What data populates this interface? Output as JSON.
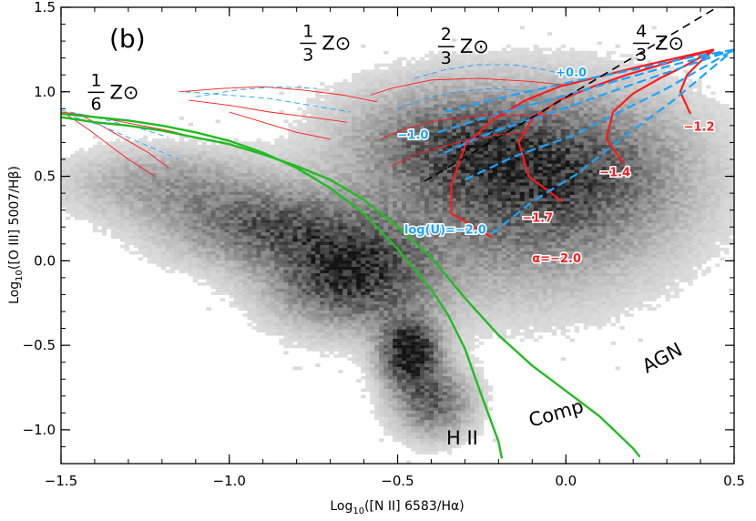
{
  "chart_data": {
    "type": "scatter",
    "panel_label": "(b)",
    "xlabel": "Log10([N II] 6583/Hα)",
    "ylabel": "Log10([O III] 5007/Hβ)",
    "xlabel_parts": {
      "pre": "Log",
      "sub": "10",
      "post": "([N II] 6583/Hα)"
    },
    "ylabel_parts": {
      "pre": "Log",
      "sub": "10",
      "post": "([O III] 5007/Hβ)"
    },
    "xlim": [
      -1.5,
      0.5
    ],
    "ylim": [
      -1.2,
      1.5
    ],
    "xticks": [
      -1.5,
      -1.0,
      -0.5,
      0.0,
      0.5
    ],
    "xtick_labels": [
      "−1.5",
      "−1.0",
      "−0.5",
      "0.0",
      "0.5"
    ],
    "yticks": [
      -1.0,
      -0.5,
      0.0,
      0.5,
      1.0,
      1.5
    ],
    "ytick_labels": [
      "−1.0",
      "−0.5",
      "0.0",
      "0.5",
      "1.0",
      "1.5"
    ],
    "region_labels": [
      "H II",
      "Comp",
      "AGN"
    ],
    "metallicity_labels": [
      {
        "num": "1",
        "den": "6",
        "sym": "Z⊙",
        "x": -1.42,
        "y": 0.97
      },
      {
        "num": "1",
        "den": "3",
        "sym": "Z⊙",
        "x": -0.79,
        "y": 1.26
      },
      {
        "num": "2",
        "den": "3",
        "sym": "Z⊙",
        "x": -0.38,
        "y": 1.24
      },
      {
        "num": "4",
        "den": "3",
        "sym": "Z⊙",
        "x": 0.2,
        "y": 1.26
      }
    ],
    "alpha_labels": [
      {
        "text": "α=−2.0",
        "x": -0.1,
        "y": -0.01
      },
      {
        "text": "−1.7",
        "x": -0.13,
        "y": 0.23
      },
      {
        "text": "−1.4",
        "x": 0.1,
        "y": 0.5
      },
      {
        "text": "−1.2",
        "x": 0.35,
        "y": 0.77
      }
    ],
    "logU_labels": [
      {
        "text": "log(U)=−2.0",
        "x": -0.48,
        "y": 0.16
      },
      {
        "text": "−1.0",
        "x": -0.5,
        "y": 0.72
      },
      {
        "text": "+0.0",
        "x": -0.03,
        "y": 1.09
      }
    ],
    "series": [
      {
        "name": "Kewley",
        "kind": "curve",
        "color": "#22bb22",
        "x": [
          -1.5,
          -1.4,
          -1.3,
          -1.2,
          -1.1,
          -1.0,
          -0.9,
          -0.8,
          -0.7,
          -0.6,
          -0.5,
          -0.4,
          -0.3,
          -0.2,
          -0.1,
          0.0,
          0.1,
          0.2,
          0.22
        ],
        "y": [
          0.85,
          0.82,
          0.8,
          0.77,
          0.73,
          0.69,
          0.63,
          0.56,
          0.48,
          0.36,
          0.2,
          0.02,
          -0.22,
          -0.44,
          -0.62,
          -0.77,
          -0.92,
          -1.11,
          -1.16
        ]
      },
      {
        "name": "Kauffmann",
        "kind": "curve",
        "color": "#22bb22",
        "x": [
          -1.5,
          -1.4,
          -1.3,
          -1.2,
          -1.1,
          -1.0,
          -0.9,
          -0.8,
          -0.7,
          -0.6,
          -0.5,
          -0.4,
          -0.35,
          -0.3,
          -0.25,
          -0.2,
          -0.19
        ],
        "y": [
          0.87,
          0.85,
          0.83,
          0.8,
          0.76,
          0.71,
          0.64,
          0.55,
          0.43,
          0.28,
          0.07,
          -0.17,
          -0.32,
          -0.52,
          -0.8,
          -1.07,
          -1.17
        ]
      },
      {
        "name": "Seyfert/LINER",
        "kind": "dashed-line",
        "color": "#000000",
        "x": [
          -0.42,
          0.5
        ],
        "y": [
          0.47,
          1.56
        ]
      },
      {
        "name": "alpha=-2.0 (Z=4/3)",
        "kind": "model-alpha",
        "color": "#ff1a1a",
        "x": [
          -0.22,
          -0.34,
          -0.34,
          -0.3,
          -0.22,
          -0.12,
          -0.02,
          0.08,
          0.22,
          0.44
        ],
        "y": [
          0.14,
          0.28,
          0.45,
          0.68,
          0.83,
          0.95,
          1.03,
          1.08,
          1.15,
          1.25
        ]
      },
      {
        "name": "alpha=-1.7 (Z=4/3)",
        "kind": "model-alpha",
        "color": "#ff1a1a",
        "x": [
          -0.01,
          -0.11,
          -0.14,
          -0.1,
          -0.02,
          0.08,
          0.18,
          0.3,
          0.44
        ],
        "y": [
          0.35,
          0.5,
          0.7,
          0.84,
          0.95,
          1.03,
          1.1,
          1.17,
          1.25
        ]
      },
      {
        "name": "alpha=-1.4 (Z=4/3)",
        "kind": "model-alpha",
        "color": "#ff1a1a",
        "x": [
          0.17,
          0.12,
          0.14,
          0.2,
          0.28,
          0.36,
          0.44
        ],
        "y": [
          0.58,
          0.72,
          0.88,
          0.99,
          1.08,
          1.16,
          1.25
        ]
      },
      {
        "name": "alpha=-1.2 (Z=4/3)",
        "kind": "model-alpha",
        "color": "#ff1a1a",
        "x": [
          0.37,
          0.34,
          0.36,
          0.4,
          0.44
        ],
        "y": [
          0.87,
          1.0,
          1.1,
          1.18,
          1.25
        ]
      },
      {
        "name": "log(U)=-2.0 (Z=4/3)",
        "kind": "model-logU",
        "color": "#1aa3ff",
        "x": [
          -0.22,
          -0.1,
          0.03,
          0.17,
          0.32,
          0.5
        ],
        "y": [
          0.16,
          0.35,
          0.51,
          0.73,
          0.95,
          1.25
        ]
      },
      {
        "name": "log(U)=-1.5 (Z=4/3)",
        "kind": "model-logU",
        "color": "#1aa3ff",
        "x": [
          -0.3,
          -0.15,
          0.02,
          0.16,
          0.3,
          0.5
        ],
        "y": [
          0.48,
          0.62,
          0.74,
          0.88,
          1.02,
          1.25
        ]
      },
      {
        "name": "log(U)=-1.0 (Z=4/3)",
        "kind": "model-logU",
        "color": "#1aa3ff",
        "x": [
          -0.36,
          -0.22,
          -0.05,
          0.12,
          0.28,
          0.5
        ],
        "y": [
          0.64,
          0.76,
          0.87,
          0.99,
          1.1,
          1.25
        ]
      },
      {
        "name": "log(U)=-0.5 (Z=4/3)",
        "kind": "model-logU",
        "color": "#1aa3ff",
        "x": [
          -0.38,
          -0.2,
          0.0,
          0.16,
          0.32,
          0.5
        ],
        "y": [
          0.76,
          0.87,
          0.98,
          1.07,
          1.16,
          1.25
        ]
      },
      {
        "name": "log(U)=+0.0 (Z=4/3)",
        "kind": "model-logU",
        "color": "#1aa3ff",
        "x": [
          -0.36,
          -0.18,
          0.02,
          0.2,
          0.36,
          0.5
        ],
        "y": [
          0.88,
          0.97,
          1.06,
          1.13,
          1.2,
          1.25
        ]
      },
      {
        "name": "alpha (Z=2/3)",
        "kind": "model-alpha-thin",
        "color": "#ff1a1a",
        "x": [
          -0.58,
          -0.52,
          -0.4,
          -0.26,
          -0.1,
          0.0
        ],
        "y": [
          0.98,
          1.02,
          1.07,
          1.08,
          1.06,
          1.04
        ]
      },
      {
        "name": "alpha (Z=2/3) b",
        "kind": "model-alpha-thin",
        "color": "#ff1a1a",
        "x": [
          -0.55,
          -0.48,
          -0.38,
          -0.25,
          -0.12,
          -0.02
        ],
        "y": [
          0.72,
          0.78,
          0.83,
          0.86,
          0.86,
          0.86
        ]
      },
      {
        "name": "alpha (Z=2/3) c",
        "kind": "model-alpha-thin",
        "color": "#ff1a1a",
        "x": [
          -0.52,
          -0.43,
          -0.32,
          -0.22,
          -0.12
        ],
        "y": [
          0.56,
          0.64,
          0.7,
          0.74,
          0.76
        ]
      },
      {
        "name": "logU (Z=2/3) a",
        "kind": "model-logU-thin",
        "color": "#1aa3ff",
        "x": [
          -0.45,
          -0.36,
          -0.26,
          -0.16,
          -0.06,
          0.02
        ],
        "y": [
          1.08,
          1.13,
          1.16,
          1.16,
          1.13,
          1.09
        ]
      },
      {
        "name": "logU (Z=2/3) b",
        "kind": "model-logU-thin",
        "color": "#1aa3ff",
        "x": [
          -0.5,
          -0.42,
          -0.32,
          -0.22,
          -0.1
        ],
        "y": [
          0.9,
          0.96,
          1.0,
          1.02,
          1.0
        ]
      },
      {
        "name": "logU (Z=2/3) c",
        "kind": "model-logU-thin",
        "color": "#1aa3ff",
        "x": [
          -0.38,
          -0.3,
          -0.2,
          -0.1
        ],
        "y": [
          0.62,
          0.7,
          0.78,
          0.86
        ]
      },
      {
        "name": "alpha (Z=1/3) a",
        "kind": "model-alpha-thin",
        "color": "#ff1a1a",
        "x": [
          -1.15,
          -1.02,
          -0.9,
          -0.78,
          -0.66,
          -0.56
        ],
        "y": [
          1.0,
          1.02,
          1.03,
          1.01,
          0.98,
          0.94
        ]
      },
      {
        "name": "alpha (Z=1/3) b",
        "kind": "model-alpha-thin",
        "color": "#ff1a1a",
        "x": [
          -1.12,
          -1.0,
          -0.88,
          -0.76,
          -0.65
        ],
        "y": [
          0.95,
          0.92,
          0.88,
          0.85,
          0.82
        ]
      },
      {
        "name": "alpha (Z=1/3) c",
        "kind": "model-alpha-thin",
        "color": "#ff1a1a",
        "x": [
          -1.0,
          -0.9,
          -0.8,
          -0.7
        ],
        "y": [
          0.88,
          0.82,
          0.76,
          0.72
        ]
      },
      {
        "name": "logU (Z=1/3) a",
        "kind": "model-logU-thin",
        "color": "#1aa3ff",
        "x": [
          -1.13,
          -1.0,
          -0.88,
          -0.76,
          -0.64
        ],
        "y": [
          1.0,
          0.98,
          0.96,
          0.92,
          0.88
        ]
      },
      {
        "name": "logU (Z=1/3) b",
        "kind": "model-logU-thin",
        "color": "#1aa3ff",
        "x": [
          -1.1,
          -0.98,
          -0.86,
          -0.74
        ],
        "y": [
          0.97,
          1.01,
          1.03,
          1.02
        ]
      },
      {
        "name": "alpha (Z=1/6) a",
        "kind": "model-alpha-thin",
        "color": "#ff1a1a",
        "x": [
          -1.5,
          -1.42,
          -1.34,
          -1.26,
          -1.18,
          -1.1
        ],
        "y": [
          0.88,
          0.86,
          0.83,
          0.8,
          0.77,
          0.73
        ]
      },
      {
        "name": "alpha (Z=1/6) b",
        "kind": "model-alpha-thin",
        "color": "#ff1a1a",
        "x": [
          -1.48,
          -1.42,
          -1.36,
          -1.3,
          -1.22
        ],
        "y": [
          0.86,
          0.78,
          0.69,
          0.6,
          0.5
        ]
      },
      {
        "name": "alpha (Z=1/6) c",
        "kind": "model-alpha-thin",
        "color": "#ff1a1a",
        "x": [
          -1.45,
          -1.38,
          -1.31,
          -1.24,
          -1.18
        ],
        "y": [
          0.87,
          0.8,
          0.72,
          0.64,
          0.55
        ]
      },
      {
        "name": "logU (Z=1/6) a",
        "kind": "model-logU-thin",
        "color": "#1aa3ff",
        "x": [
          -1.5,
          -1.42,
          -1.34,
          -1.26,
          -1.18
        ],
        "y": [
          0.89,
          0.86,
          0.82,
          0.78,
          0.73
        ]
      },
      {
        "name": "logU (Z=1/6) b",
        "kind": "model-logU-thin",
        "color": "#1aa3ff",
        "x": [
          -1.46,
          -1.38,
          -1.3,
          -1.22,
          -1.15
        ],
        "y": [
          0.85,
          0.8,
          0.73,
          0.66,
          0.6
        ]
      }
    ]
  }
}
